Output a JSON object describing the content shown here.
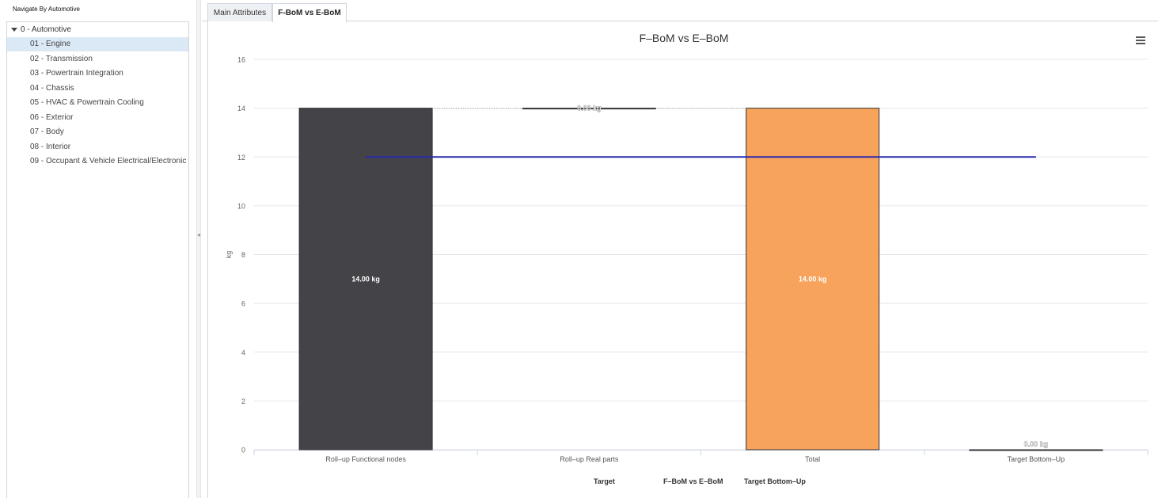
{
  "nav": {
    "title": "Navigate By Automotive",
    "root": "0 - Automotive",
    "items": [
      {
        "label": "01 - Engine",
        "selected": true
      },
      {
        "label": "02 - Transmission"
      },
      {
        "label": "03 - Powertrain Integration"
      },
      {
        "label": "04 - Chassis"
      },
      {
        "label": "05 - HVAC & Powertrain Cooling"
      },
      {
        "label": "06 - Exterior"
      },
      {
        "label": "07 - Body"
      },
      {
        "label": "08 - Interior"
      },
      {
        "label": "09 - Occupant & Vehicle Electrical/Electronic"
      }
    ]
  },
  "tabs": [
    {
      "label": "Main Attributes",
      "active": false
    },
    {
      "label": "F-BoM vs E-BoM",
      "active": true
    }
  ],
  "icons": {
    "menu": "hamburger-menu-icon",
    "tree_toggle": "caret-down-icon",
    "splitter": "collapse-arrow-icon"
  },
  "chart_data": {
    "type": "bar",
    "title": "F–BoM vs E–BoM",
    "ylabel": "kg",
    "ylim": [
      0,
      16
    ],
    "yticks": [
      "0",
      "2",
      "4",
      "6",
      "8",
      "10",
      "12",
      "14",
      "16"
    ],
    "categories": [
      "Roll–up Functional nodes",
      "Roll–up Real parts",
      "Total",
      "Target Bottom–Up"
    ],
    "waterfall": [
      {
        "category": "Roll–up Functional nodes",
        "base": 0,
        "value": 14,
        "label": "14.00 kg",
        "color": "#434348"
      },
      {
        "category": "Roll–up Real parts",
        "base": 14,
        "value": 0,
        "label": "0.00 kg",
        "color": "#434348"
      },
      {
        "category": "Total",
        "base": 0,
        "value": 14,
        "label": "14.00 kg",
        "color": "#f7a35c"
      },
      {
        "category": "Target Bottom–Up",
        "base": 0,
        "value": 0,
        "label": "0.00 kg",
        "color": "#90ed7d"
      }
    ],
    "target": {
      "name": "Target",
      "value": 12,
      "color": "#2b2bb0"
    },
    "legend": [
      "Target",
      "F–BoM vs E–BoM",
      "Target Bottom–Up"
    ],
    "legend_position": "bottom",
    "grid": true
  }
}
